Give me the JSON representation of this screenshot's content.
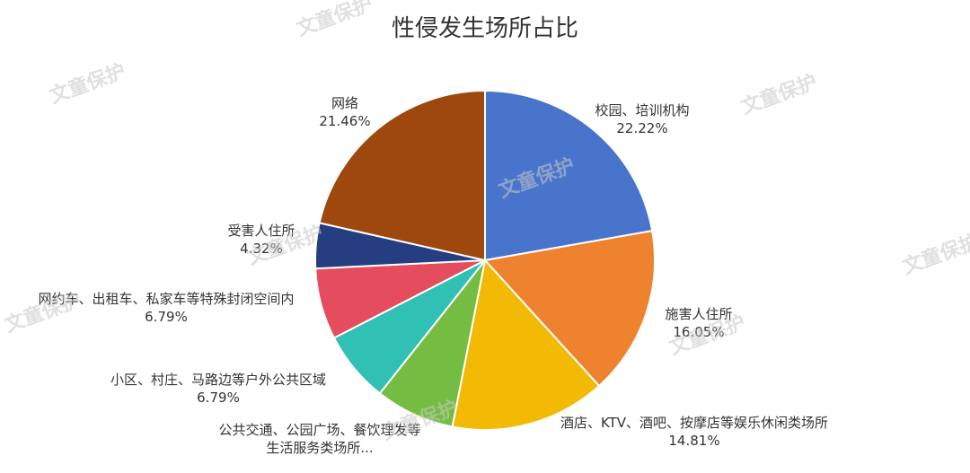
{
  "chart_data": {
    "type": "pie",
    "title": "性侵发生场所占比",
    "start_angle_deg": 0,
    "direction": "clockwise",
    "slices": [
      {
        "name": "校园、培训机构",
        "value": 22.22,
        "label_lines": [
          "校园、培训机构"
        ],
        "pct_label": "22.22%",
        "color": "#4874CB"
      },
      {
        "name": "施害人住所",
        "value": 16.05,
        "label_lines": [
          "施害人住所"
        ],
        "pct_label": "16.05%",
        "color": "#EE822F"
      },
      {
        "name": "酒店、KTV、酒吧、按摩店等娱乐休闲类场所",
        "value": 14.81,
        "label_lines": [
          "酒店、KTV、酒吧、按摩店等娱乐休闲类场所"
        ],
        "pct_label": "14.81%",
        "color": "#F2BA02"
      },
      {
        "name": "公共交通、公园广场、餐饮理发等生活服务类场所",
        "value": 7.56,
        "label_lines": [
          "公共交通、公园广场、餐饮理发等",
          "生活服务类场所..."
        ],
        "pct_label": "",
        "color": "#75BD42"
      },
      {
        "name": "小区、村庄、马路边等户外公共区域",
        "value": 6.79,
        "label_lines": [
          "小区、村庄、马路边等户外公共区域"
        ],
        "pct_label": "6.79%",
        "color": "#30C0B4"
      },
      {
        "name": "网约车、出租车、私家车等特殊封闭空间内",
        "value": 6.79,
        "label_lines": [
          "网约车、出租车、私家车等特殊封闭空间内"
        ],
        "pct_label": "6.79%",
        "color": "#E54C5E"
      },
      {
        "name": "受害人住所",
        "value": 4.32,
        "label_lines": [
          "受害人住所"
        ],
        "pct_label": "4.32%",
        "color": "#253E82"
      },
      {
        "name": "网络",
        "value": 21.46,
        "label_lines": [
          "网络"
        ],
        "pct_label": "21.46%",
        "color": "#9E480E"
      }
    ]
  },
  "watermark": "文童保护"
}
